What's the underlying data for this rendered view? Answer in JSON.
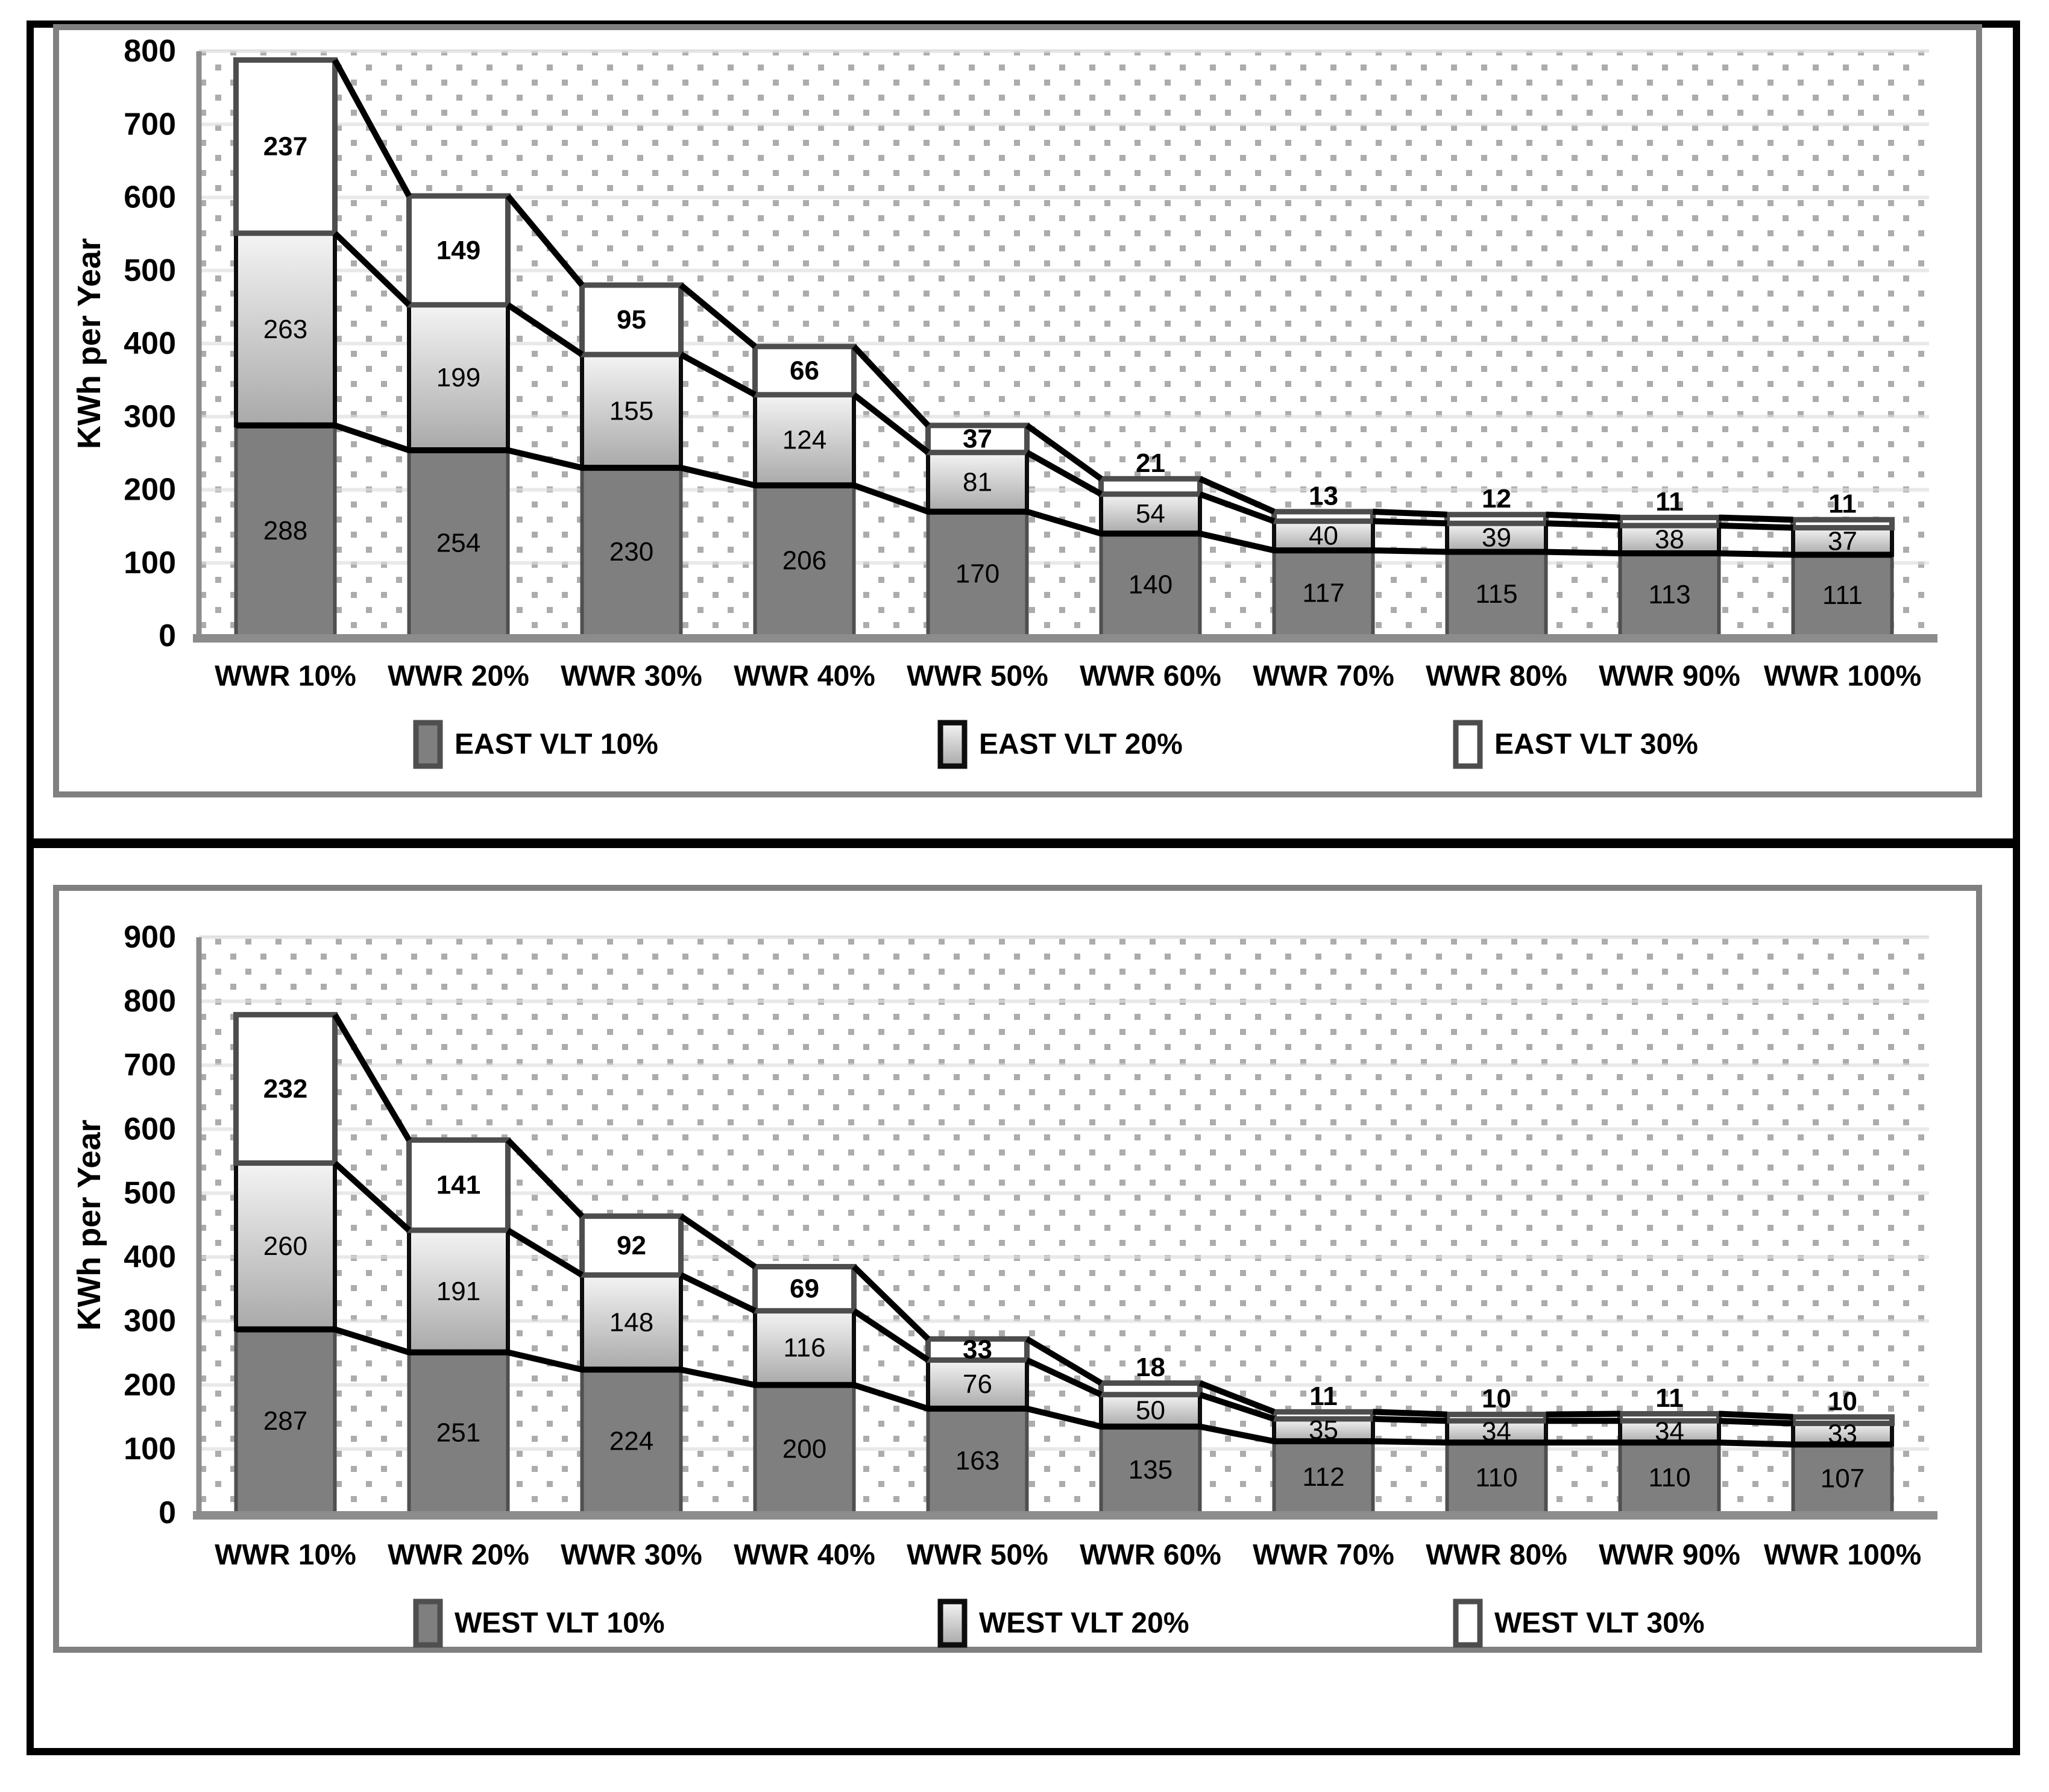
{
  "colors": {
    "page_background": "#ffffff",
    "outer_border": "#000000",
    "panel_separator": "#000000",
    "chart_box_border": "#808080",
    "grid": "#e0e0e0",
    "axis": "#8c8c8c",
    "dot": "#a3a3a3",
    "series_line": "#000000",
    "vlt10_fill": "#7f7f7f",
    "vlt10_border": "#4f4f4f",
    "vlt20_gradient_top": "#f4f4f4",
    "vlt20_gradient_bottom": "#a9a9a9",
    "vlt20_border": "#0d0d0d",
    "vlt30_fill": "#ffffff",
    "vlt30_border": "#4d4d4d",
    "label_text": "#000000"
  },
  "chart_data": [
    {
      "type": "bar",
      "stacked": true,
      "name": "east",
      "title": "",
      "ylabel": "KWh per Year",
      "xlabel": "",
      "ylim": [
        0,
        800
      ],
      "ytick_step": 100,
      "grid": true,
      "background": "dotted",
      "legend_position": "bottom",
      "categories": [
        "WWR 10%",
        "WWR 20%",
        "WWR 30%",
        "WWR 40%",
        "WWR 50%",
        "WWR 60%",
        "WWR 70%",
        "WWR 80%",
        "WWR 90%",
        "WWR 100%"
      ],
      "series": [
        {
          "name": "EAST VLT 10%",
          "style": "dark",
          "values": [
            288,
            254,
            230,
            206,
            170,
            140,
            117,
            115,
            113,
            111
          ]
        },
        {
          "name": "EAST VLT 20%",
          "style": "gradient",
          "values": [
            263,
            199,
            155,
            124,
            81,
            54,
            40,
            39,
            38,
            37
          ]
        },
        {
          "name": "EAST VLT 30%",
          "style": "white",
          "values": [
            237,
            149,
            95,
            66,
            37,
            21,
            13,
            12,
            11,
            11
          ]
        }
      ]
    },
    {
      "type": "bar",
      "stacked": true,
      "name": "west",
      "title": "",
      "ylabel": "KWh per Year",
      "xlabel": "",
      "ylim": [
        0,
        900
      ],
      "ytick_step": 100,
      "grid": true,
      "background": "dotted",
      "legend_position": "bottom",
      "categories": [
        "WWR 10%",
        "WWR 20%",
        "WWR 30%",
        "WWR 40%",
        "WWR 50%",
        "WWR 60%",
        "WWR 70%",
        "WWR 80%",
        "WWR 90%",
        "WWR 100%"
      ],
      "series": [
        {
          "name": "WEST VLT 10%",
          "style": "dark",
          "values": [
            287,
            251,
            224,
            200,
            163,
            135,
            112,
            110,
            110,
            107
          ]
        },
        {
          "name": "WEST VLT 20%",
          "style": "gradient",
          "values": [
            260,
            191,
            148,
            116,
            76,
            50,
            35,
            34,
            34,
            33
          ]
        },
        {
          "name": "WEST VLT 30%",
          "style": "white",
          "values": [
            232,
            141,
            92,
            69,
            33,
            18,
            11,
            10,
            11,
            10
          ]
        }
      ]
    }
  ]
}
